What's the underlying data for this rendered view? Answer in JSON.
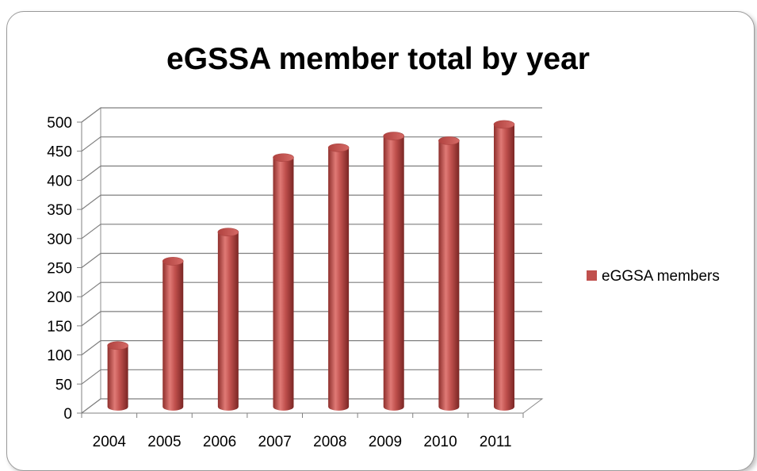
{
  "chart_data": {
    "type": "bar",
    "title": "eGSSA member total by year",
    "xlabel": "",
    "ylabel": "",
    "categories": [
      "2004",
      "2005",
      "2006",
      "2007",
      "2008",
      "2009",
      "2010",
      "2011"
    ],
    "series": [
      {
        "name": "eGGSA members",
        "values": [
          105,
          250,
          300,
          428,
          445,
          465,
          457,
          485
        ],
        "color": "#c0504d"
      }
    ],
    "ylim": [
      0,
      500
    ],
    "yticks": [
      0,
      50,
      100,
      150,
      200,
      250,
      300,
      350,
      400,
      450,
      500
    ],
    "grid": true,
    "legend_position": "right",
    "style": "3d-cylinder"
  }
}
